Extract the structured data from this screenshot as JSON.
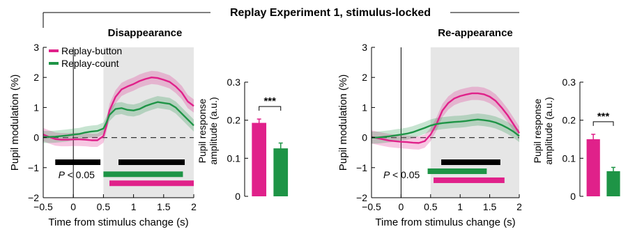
{
  "figure": {
    "title": "Replay Experiment 1, stimulus-locked",
    "colors": {
      "button": "#e0218a",
      "count": "#1e9446",
      "shade": "#e6e6e6",
      "black": "#000000"
    }
  },
  "chart_data": [
    {
      "type": "line",
      "title": "Disappearance",
      "xlabel": "Time from stimulus change (s)",
      "ylabel": "Pupil modulation (%)",
      "xlim": [
        -0.5,
        2
      ],
      "ylim": [
        -2,
        3
      ],
      "xticks": [
        "−0.5",
        "0",
        "0.5",
        "1",
        "1.5",
        "2"
      ],
      "yticks": [
        "−2",
        "−1",
        "0",
        "1",
        "2",
        "3"
      ],
      "shaded_region": [
        0.5,
        2
      ],
      "significance_label": "< 0.05",
      "significance_prefix": "P",
      "series": [
        {
          "name": "Replay-button",
          "color": "#e0218a",
          "points": [
            [
              -0.5,
              0.1
            ],
            [
              -0.4,
              0.02
            ],
            [
              -0.3,
              -0.05
            ],
            [
              -0.2,
              -0.07
            ],
            [
              -0.1,
              -0.07
            ],
            [
              0,
              -0.06
            ],
            [
              0.1,
              -0.06
            ],
            [
              0.2,
              -0.07
            ],
            [
              0.3,
              -0.09
            ],
            [
              0.4,
              -0.09
            ],
            [
              0.5,
              0.05
            ],
            [
              0.55,
              0.4
            ],
            [
              0.6,
              0.9
            ],
            [
              0.7,
              1.35
            ],
            [
              0.8,
              1.6
            ],
            [
              0.9,
              1.7
            ],
            [
              1.0,
              1.78
            ],
            [
              1.1,
              1.88
            ],
            [
              1.2,
              1.95
            ],
            [
              1.3,
              2.0
            ],
            [
              1.4,
              1.98
            ],
            [
              1.5,
              1.92
            ],
            [
              1.6,
              1.85
            ],
            [
              1.7,
              1.7
            ],
            [
              1.8,
              1.5
            ],
            [
              1.9,
              1.2
            ],
            [
              2.0,
              1.05
            ]
          ],
          "band": 0.22
        },
        {
          "name": "Replay-count",
          "color": "#1e9446",
          "points": [
            [
              -0.5,
              0.02
            ],
            [
              -0.4,
              0.02
            ],
            [
              -0.3,
              0.03
            ],
            [
              -0.2,
              0.05
            ],
            [
              -0.1,
              0.07
            ],
            [
              0,
              0.1
            ],
            [
              0.1,
              0.12
            ],
            [
              0.2,
              0.17
            ],
            [
              0.3,
              0.2
            ],
            [
              0.4,
              0.22
            ],
            [
              0.5,
              0.3
            ],
            [
              0.55,
              0.5
            ],
            [
              0.6,
              0.75
            ],
            [
              0.7,
              0.95
            ],
            [
              0.8,
              0.98
            ],
            [
              0.9,
              0.92
            ],
            [
              1.0,
              0.9
            ],
            [
              1.1,
              0.95
            ],
            [
              1.2,
              1.05
            ],
            [
              1.3,
              1.12
            ],
            [
              1.4,
              1.18
            ],
            [
              1.5,
              1.15
            ],
            [
              1.6,
              1.12
            ],
            [
              1.7,
              1.0
            ],
            [
              1.8,
              0.8
            ],
            [
              1.9,
              0.6
            ],
            [
              2.0,
              0.4
            ]
          ],
          "band": 0.2
        }
      ],
      "sig_bars": [
        {
          "color": "#000000",
          "x0": -0.3,
          "x1": 0.45,
          "y": -0.82
        },
        {
          "color": "#000000",
          "x0": 0.75,
          "x1": 1.85,
          "y": -0.82
        },
        {
          "color": "#1e9446",
          "x0": 0.5,
          "x1": 1.82,
          "y": -1.22
        },
        {
          "color": "#e0218a",
          "x0": 0.6,
          "x1": 2.0,
          "y": -1.52
        }
      ]
    },
    {
      "type": "bar",
      "title": "",
      "ylabel": "Pupil response amplitude (a.u.)",
      "ylabel_lines": [
        "Pupil response",
        "amplitude (a.u.)"
      ],
      "categories": [
        "Replay-button",
        "Replay-count"
      ],
      "values": [
        0.193,
        0.126
      ],
      "errors": [
        0.01,
        0.014
      ],
      "ylim": [
        0,
        0.3
      ],
      "yticks": [
        "0",
        "0.1",
        "0.2",
        "0.3"
      ],
      "significance": "***"
    },
    {
      "type": "line",
      "title": "Re-appearance",
      "xlabel": "Time from stimulus change (s)",
      "ylabel": "Pupil modulation (%)",
      "xlim": [
        -0.5,
        2
      ],
      "ylim": [
        -2,
        3
      ],
      "xticks": [
        "−0.5",
        "0",
        "0.5",
        "1",
        "1.5",
        "2"
      ],
      "yticks": [
        "−2",
        "−1",
        "0",
        "1",
        "2",
        "3"
      ],
      "shaded_region": [
        0.5,
        2
      ],
      "significance_label": "< 0.05",
      "significance_prefix": "P",
      "series": [
        {
          "name": "Replay-button",
          "color": "#e0218a",
          "points": [
            [
              -0.5,
              0.02
            ],
            [
              -0.4,
              -0.02
            ],
            [
              -0.3,
              -0.06
            ],
            [
              -0.2,
              -0.1
            ],
            [
              -0.1,
              -0.12
            ],
            [
              0,
              -0.14
            ],
            [
              0.1,
              -0.15
            ],
            [
              0.2,
              -0.17
            ],
            [
              0.3,
              -0.18
            ],
            [
              0.4,
              -0.12
            ],
            [
              0.5,
              0.1
            ],
            [
              0.6,
              0.45
            ],
            [
              0.7,
              0.9
            ],
            [
              0.8,
              1.15
            ],
            [
              0.9,
              1.3
            ],
            [
              1.0,
              1.38
            ],
            [
              1.1,
              1.43
            ],
            [
              1.2,
              1.47
            ],
            [
              1.3,
              1.47
            ],
            [
              1.4,
              1.44
            ],
            [
              1.5,
              1.36
            ],
            [
              1.6,
              1.22
            ],
            [
              1.7,
              1.0
            ],
            [
              1.8,
              0.75
            ],
            [
              1.9,
              0.45
            ],
            [
              2.0,
              0.15
            ]
          ],
          "band": 0.22
        },
        {
          "name": "Replay-count",
          "color": "#1e9446",
          "points": [
            [
              -0.5,
              0.0
            ],
            [
              -0.4,
              0.0
            ],
            [
              -0.3,
              0.02
            ],
            [
              -0.2,
              0.04
            ],
            [
              -0.1,
              0.07
            ],
            [
              0,
              0.1
            ],
            [
              0.1,
              0.13
            ],
            [
              0.2,
              0.18
            ],
            [
              0.3,
              0.25
            ],
            [
              0.4,
              0.32
            ],
            [
              0.5,
              0.4
            ],
            [
              0.6,
              0.45
            ],
            [
              0.7,
              0.48
            ],
            [
              0.8,
              0.5
            ],
            [
              0.9,
              0.52
            ],
            [
              1.0,
              0.53
            ],
            [
              1.1,
              0.55
            ],
            [
              1.2,
              0.58
            ],
            [
              1.3,
              0.6
            ],
            [
              1.4,
              0.58
            ],
            [
              1.5,
              0.55
            ],
            [
              1.6,
              0.5
            ],
            [
              1.7,
              0.42
            ],
            [
              1.8,
              0.32
            ],
            [
              1.9,
              0.2
            ],
            [
              2.0,
              0.05
            ]
          ],
          "band": 0.2
        }
      ],
      "sig_bars": [
        {
          "color": "#000000",
          "x0": 0.68,
          "x1": 1.68,
          "y": -0.82
        },
        {
          "color": "#1e9446",
          "x0": 0.45,
          "x1": 1.45,
          "y": -1.12
        },
        {
          "color": "#e0218a",
          "x0": 0.55,
          "x1": 1.75,
          "y": -1.42
        }
      ]
    },
    {
      "type": "bar",
      "title": "",
      "ylabel": "Pupil response amplitude (a.u.)",
      "ylabel_lines": [
        "Pupil response",
        "amplitude (a.u.)"
      ],
      "categories": [
        "Replay-button",
        "Replay-count"
      ],
      "values": [
        0.15,
        0.066
      ],
      "errors": [
        0.013,
        0.01
      ],
      "ylim": [
        0,
        0.3
      ],
      "yticks": [
        "0",
        "0.1",
        "0.2",
        "0.3"
      ],
      "significance": "***"
    }
  ]
}
